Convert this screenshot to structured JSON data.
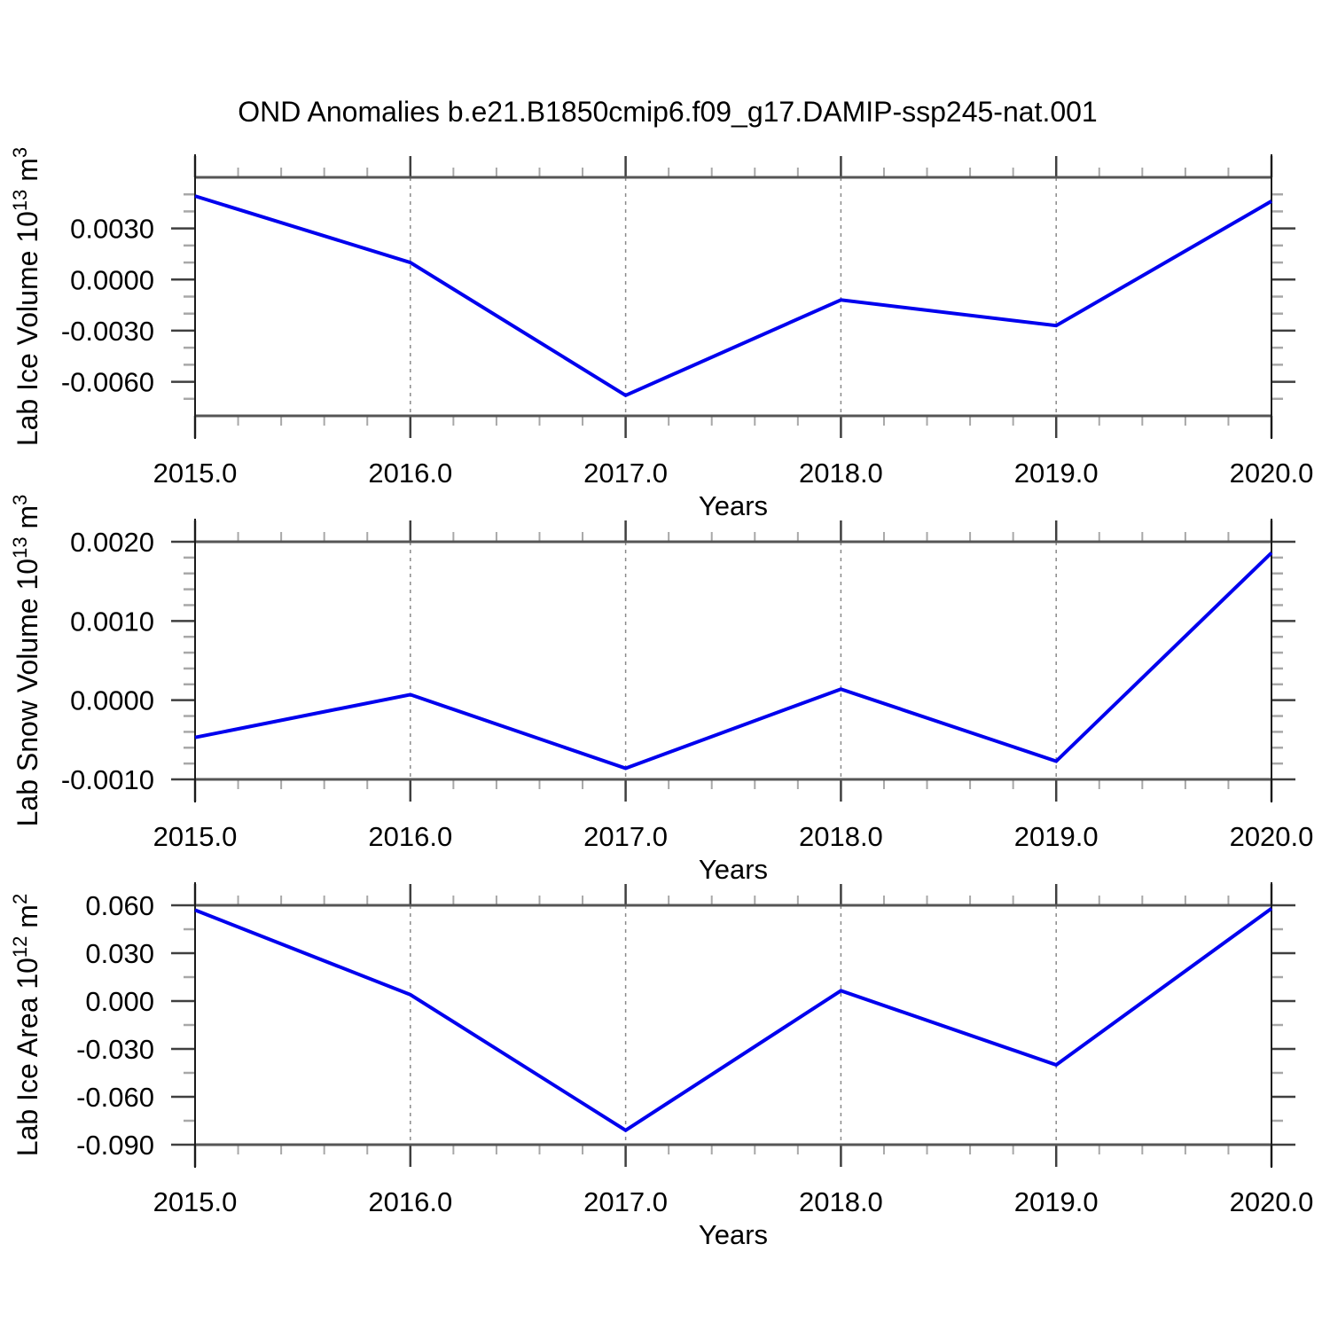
{
  "title": "OND Anomalies b.e21.B1850cmip6.f09_g17.DAMIP-ssp245-nat.001",
  "colors": {
    "line": "#0000EE",
    "grid": "#8a8a8a",
    "axis": "#1a1a1a",
    "border": "#555555",
    "tick_major": "#3f3f3f",
    "tick_minor": "#a8a8a8",
    "text": "#000000",
    "background": "#ffffff"
  },
  "x_axis": {
    "label": "Years",
    "range": [
      2015,
      2020
    ],
    "ticks": [
      2015,
      2016,
      2017,
      2018,
      2019,
      2020
    ],
    "tick_labels": [
      "2015.0",
      "2016.0",
      "2017.0",
      "2018.0",
      "2019.0",
      "2020.0"
    ],
    "minor_step": 0.2,
    "grid_years": [
      2016,
      2017,
      2018,
      2019
    ]
  },
  "chart_data": [
    {
      "type": "line",
      "name": "lab-ice-volume",
      "title": "",
      "xlabel": "Years",
      "ylabel_text": "Lab Ice Volume 10^13 m^3",
      "ylabel_parts": [
        {
          "t": "Lab Ice Volume 10"
        },
        {
          "t": "13",
          "sup": true
        },
        {
          "t": " m"
        },
        {
          "t": "3",
          "sup": true
        }
      ],
      "x": [
        2015,
        2016,
        2017,
        2018,
        2019,
        2020
      ],
      "values": [
        0.0049,
        0.001,
        -0.0068,
        -0.0012,
        -0.0027,
        0.0046
      ],
      "ylim": [
        -0.008,
        0.006
      ],
      "ytick_values": [
        0.003,
        0.0,
        -0.003,
        -0.006
      ],
      "ytick_labels": [
        "0.0030",
        "0.0000",
        "-0.0030",
        "-0.0060"
      ],
      "yminor_step": 0.001,
      "grid": true,
      "legend": "none"
    },
    {
      "type": "line",
      "name": "lab-snow-volume",
      "title": "",
      "xlabel": "Years",
      "ylabel_text": "Lab Snow Volume 10^13 m^3",
      "ylabel_parts": [
        {
          "t": "Lab Snow Volume 10"
        },
        {
          "t": "13",
          "sup": true
        },
        {
          "t": " m"
        },
        {
          "t": "3",
          "sup": true
        }
      ],
      "x": [
        2015,
        2016,
        2017,
        2018,
        2019,
        2020
      ],
      "values": [
        -0.00047,
        7e-05,
        -0.00086,
        0.00014,
        -0.00077,
        0.00186
      ],
      "ylim": [
        -0.001,
        0.002
      ],
      "ytick_values": [
        0.002,
        0.001,
        0.0,
        -0.001
      ],
      "ytick_labels": [
        "0.0020",
        "0.0010",
        "0.0000",
        "-0.0010"
      ],
      "yminor_step": 0.0002,
      "grid": true,
      "legend": "none"
    },
    {
      "type": "line",
      "name": "lab-ice-area",
      "title": "",
      "xlabel": "Years",
      "ylabel_text": "Lab Ice Area 10^12 m^2",
      "ylabel_parts": [
        {
          "t": "Lab Ice Area 10"
        },
        {
          "t": "12",
          "sup": true
        },
        {
          "t": " m"
        },
        {
          "t": "2",
          "sup": true
        }
      ],
      "x": [
        2015,
        2016,
        2017,
        2018,
        2019,
        2020
      ],
      "values": [
        0.057,
        0.004,
        -0.081,
        0.0065,
        -0.04,
        0.058
      ],
      "ylim": [
        -0.09,
        0.06
      ],
      "ytick_values": [
        0.06,
        0.03,
        0.0,
        -0.03,
        -0.06,
        -0.09
      ],
      "ytick_labels": [
        "0.060",
        "0.030",
        "0.000",
        "-0.030",
        "-0.060",
        "-0.090"
      ],
      "yminor_step": 0.015,
      "grid": true,
      "legend": "none"
    }
  ]
}
